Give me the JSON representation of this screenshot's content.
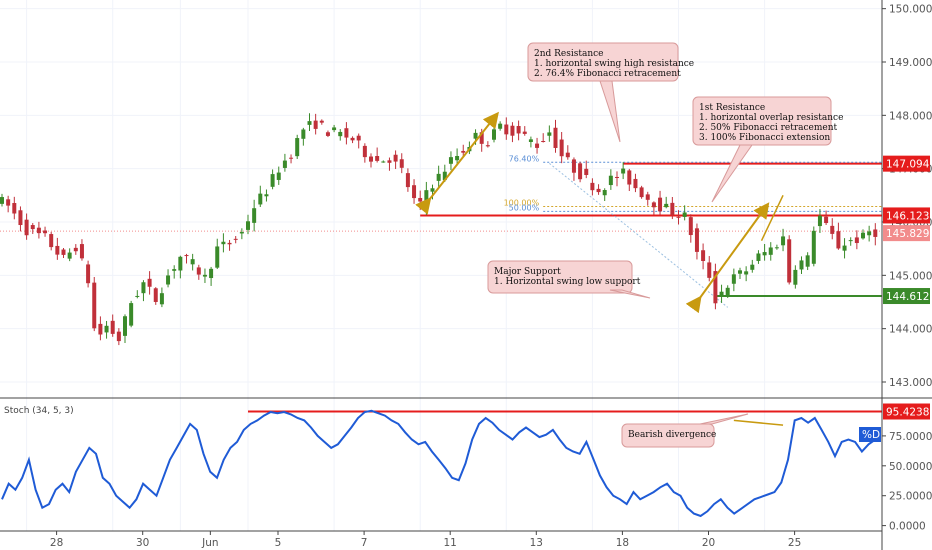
{
  "chart_data": {
    "type": "candlestick",
    "price_axis": {
      "range": [
        142.85,
        150.05
      ],
      "ticks": [
        "150.000",
        "149.000",
        "148.000",
        "147.000",
        "146.000",
        "145.000",
        "144.000",
        "143.000"
      ]
    },
    "stoch_axis": {
      "range": [
        -2,
        100
      ],
      "ticks": [
        "75.0000",
        "50.0000",
        "25.0000",
        "0.0000"
      ]
    },
    "x_tick_labels": [
      {
        "label": "28",
        "i": 4
      },
      {
        "label": "30",
        "i": 18
      },
      {
        "label": "Jun",
        "i": 29
      },
      {
        "label": "5",
        "i": 40
      },
      {
        "label": "7",
        "i": 54
      },
      {
        "label": "11",
        "i": 68
      },
      {
        "label": "13",
        "i": 82
      },
      {
        "label": "18",
        "i": 96
      },
      {
        "label": "20",
        "i": 110
      },
      {
        "label": "25",
        "i": 124
      }
    ],
    "price_levels": [
      {
        "label": "147.094",
        "value": 147.094,
        "color": "#e51c1c"
      },
      {
        "label": "146.123",
        "value": 146.123,
        "color": "#e51c1c"
      },
      {
        "label": "145.829",
        "value": 145.829,
        "color": "#f28c8c"
      },
      {
        "label": "144.612",
        "value": 144.612,
        "color": "#3a8a2a"
      }
    ],
    "fib_levels": [
      {
        "label": "76.40%",
        "value": 147.12,
        "color": "#5b8fd6"
      },
      {
        "label": "100.00%",
        "value": 146.29,
        "color": "#d4a72c"
      },
      {
        "label": "50.00%",
        "value": 146.2,
        "color": "#5b8fd6"
      }
    ],
    "stoch": {
      "label": "Stoch (34, 5, 3)",
      "level_label": "95.4238",
      "level": 95.4,
      "k_label": "%D",
      "values": [
        22,
        35,
        30,
        40,
        55,
        30,
        15,
        18,
        30,
        35,
        28,
        45,
        55,
        65,
        60,
        40,
        35,
        25,
        20,
        15,
        22,
        35,
        30,
        25,
        40,
        55,
        65,
        75,
        85,
        80,
        60,
        45,
        40,
        55,
        65,
        70,
        80,
        85,
        88,
        92,
        95,
        94,
        95,
        93,
        90,
        88,
        82,
        75,
        70,
        65,
        68,
        75,
        82,
        90,
        95,
        96,
        94,
        92,
        88,
        85,
        78,
        72,
        68,
        70,
        62,
        55,
        48,
        40,
        38,
        52,
        72,
        85,
        90,
        86,
        80,
        76,
        72,
        78,
        82,
        78,
        74,
        76,
        80,
        72,
        65,
        62,
        60,
        70,
        56,
        42,
        32,
        25,
        22,
        18,
        28,
        22,
        25,
        28,
        32,
        35,
        28,
        25,
        15,
        10,
        8,
        12,
        18,
        22,
        15,
        10,
        14,
        18,
        22,
        24,
        26,
        28,
        36,
        55,
        88,
        90,
        86,
        90,
        80,
        70,
        58,
        70,
        72,
        70,
        62,
        68,
        72
      ]
    },
    "annotations": {
      "res2_title": "2nd Resistance",
      "res2_l1": "1. horizontal swing high resistance",
      "res2_l2": "2. 76.4% Fibonacci retracement",
      "res1_title": "1st Resistance",
      "res1_l1": "1. horizontal overlap resistance",
      "res1_l2": "2. 50% Fibonacci retracement",
      "res1_l3": "3. 100% Fibonacci extension",
      "sup_title": "Major Support",
      "sup_l1": "1. Horizontal swing low support",
      "div": "Bearish divergence"
    },
    "colors": {
      "up": "#3a8a2a",
      "down": "#c0303a",
      "stoch": "#1f5bd6",
      "res": "#e51c1c",
      "sup": "#3a8a2a",
      "ann_bg": "#f7d4d4",
      "ann_border": "#d89a9a",
      "arrow": "#c89a10"
    }
  }
}
